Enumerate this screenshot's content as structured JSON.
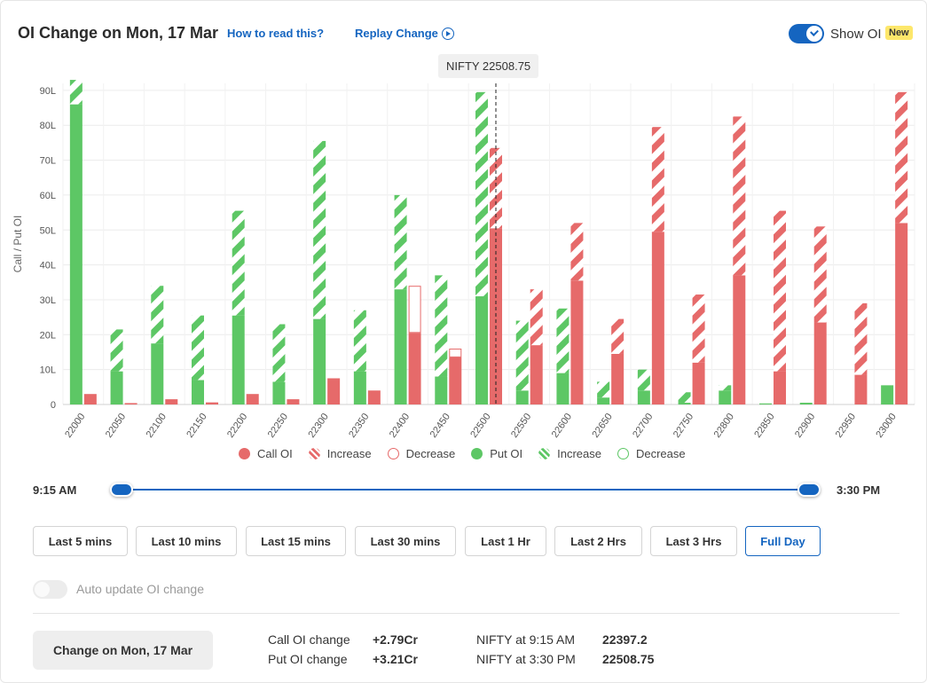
{
  "header": {
    "title": "OI Change on Mon, 17 Mar",
    "how_to_read": "How to read this?",
    "replay": "Replay Change",
    "show_oi": "Show OI",
    "badge": "New",
    "nifty_marker": "NIFTY 22508.75"
  },
  "legend": [
    {
      "label": "Call OI",
      "kind": "solid",
      "color": "#e66a6a"
    },
    {
      "label": "Increase",
      "kind": "hatch",
      "color": "#e66a6a"
    },
    {
      "label": "Decrease",
      "kind": "outline",
      "color": "#e66a6a"
    },
    {
      "label": "Put OI",
      "kind": "solid",
      "color": "#5dc765"
    },
    {
      "label": "Increase",
      "kind": "hatch",
      "color": "#5dc765"
    },
    {
      "label": "Decrease",
      "kind": "outline",
      "color": "#5dc765"
    }
  ],
  "slider": {
    "start": "9:15 AM",
    "end": "3:30 PM"
  },
  "range_buttons": [
    "Last 5 mins",
    "Last 10 mins",
    "Last 15 mins",
    "Last 30 mins",
    "Last 1 Hr",
    "Last 2 Hrs",
    "Last 3 Hrs",
    "Full Day"
  ],
  "active_range": "Full Day",
  "auto_update": {
    "label": "Auto update OI change",
    "enabled": false
  },
  "summary": {
    "button": "Change on Mon, 17 Mar",
    "call_label": "Call OI change",
    "call_value": "+2.79Cr",
    "put_label": "Put OI change",
    "put_value": "+3.21Cr",
    "nifty_open_label": "NIFTY at 9:15 AM",
    "nifty_open_value": "22397.2",
    "nifty_close_label": "NIFTY at 3:30 PM",
    "nifty_close_value": "22508.75"
  },
  "colors": {
    "call": "#e66a6a",
    "call_light": "#f4a9a9",
    "put": "#5dc765",
    "put_light": "#a9e5ab",
    "accent": "#1565c0"
  },
  "chart_data": {
    "type": "bar",
    "ylabel": "Call / Put OI",
    "ylim": [
      0,
      92
    ],
    "yticks": [
      0,
      10,
      20,
      30,
      40,
      50,
      60,
      70,
      80,
      90
    ],
    "ytick_labels": [
      "0",
      "10L",
      "20L",
      "30L",
      "40L",
      "50L",
      "60L",
      "70L",
      "80L",
      "90L"
    ],
    "categories": [
      "22000",
      "22050",
      "22100",
      "22150",
      "22200",
      "22250",
      "22300",
      "22350",
      "22400",
      "22450",
      "22500",
      "22550",
      "22600",
      "22650",
      "22700",
      "22750",
      "22800",
      "22850",
      "22900",
      "22950",
      "23000"
    ],
    "nifty_spot": 22508.75,
    "series": [
      {
        "name": "Put OI",
        "base": [
          86,
          9.5,
          17.5,
          7,
          25.5,
          6.5,
          24.5,
          9.5,
          33,
          8,
          31,
          4,
          9,
          2,
          4,
          0.5,
          4,
          0.3,
          0.5,
          0,
          5.5
        ],
        "change": [
          7,
          12,
          16.5,
          18.5,
          30,
          16.5,
          51,
          17.5,
          27,
          29,
          58.5,
          20,
          18.5,
          4.5,
          6,
          3,
          1.5,
          0,
          0,
          0,
          0
        ]
      },
      {
        "name": "Call OI",
        "base": [
          3,
          0.4,
          1.5,
          0.6,
          3,
          1.5,
          7.5,
          4,
          34,
          16,
          50.5,
          17,
          35.5,
          14.5,
          49.5,
          12,
          37,
          9.5,
          23.5,
          8.5,
          52
        ],
        "change": [
          0,
          0,
          0,
          0,
          0,
          0,
          0,
          0,
          -13.5,
          -2.5,
          23,
          16,
          16.5,
          10,
          30,
          19.5,
          45.5,
          46,
          27.5,
          20.5,
          37.5
        ]
      }
    ]
  }
}
